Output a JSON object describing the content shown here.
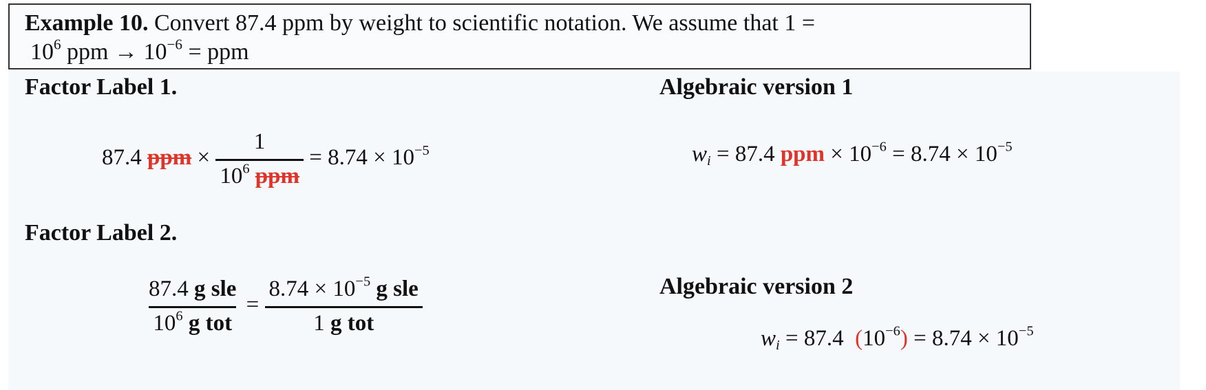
{
  "header": {
    "title_bold": "Example 10.",
    "line1": "Convert 87.4 ppm by weight to scientific notation. We assume that 1  =",
    "line2_a": "10",
    "line2_sup1": "6",
    "line2_b": " ppm → 10",
    "line2_sup2": "−6",
    "line2_c": "  = ppm"
  },
  "factor_label_1": {
    "heading": "Factor Label 1.",
    "value": "87.4 ",
    "unit": "ppm",
    "times": " × ",
    "numerator": "1",
    "den_base": "10",
    "den_exp": "6",
    "den_unit": "ppm",
    "result": " = 8.74 × 10",
    "result_exp": "−5"
  },
  "factor_label_2": {
    "heading": "Factor Label 2.",
    "left_num_value": "87.4 ",
    "left_num_unit": "g sle",
    "left_den_base": "10",
    "left_den_exp": "6",
    "left_den_unit": " g tot",
    "equals": "=",
    "right_num_value": "8.74 × 10",
    "right_num_exp": "−5",
    "right_num_unit": " g sle",
    "right_den_value": "1 ",
    "right_den_unit": "g tot"
  },
  "algebraic_1": {
    "heading": "Algebraic version 1",
    "var": "w",
    "sub": "i",
    "eq_a": " = 87.4 ",
    "unit": "ppm",
    "eq_b": " × 10",
    "exp1": "−6",
    "eq_c": " = 8.74 × 10",
    "exp2": "−5"
  },
  "algebraic_2": {
    "heading": "Algebraic version 2",
    "var": "w",
    "sub": "i",
    "eq_a": " = 87.4  ",
    "paren_open": "(",
    "paren_base": "10",
    "paren_exp": "−6",
    "paren_close": ")",
    "eq_c": " = 8.74 × 10",
    "exp2": "−5"
  },
  "colors": {
    "accent_red": "#e0342a",
    "panel_bg": "#f6f9fb"
  }
}
